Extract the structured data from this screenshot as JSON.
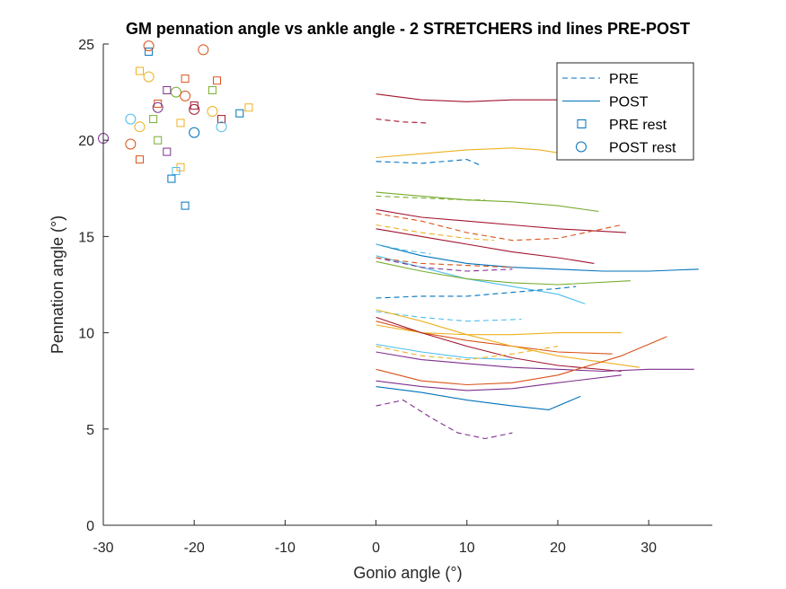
{
  "chart_data": {
    "type": "line",
    "title": "GM pennation angle vs ankle angle - 2 STRETCHERS ind lines PRE-POST",
    "xlabel": "Gonio angle (°)",
    "ylabel": "Pennation angle (°)",
    "xlim": [
      -30,
      37
    ],
    "ylim": [
      0,
      25
    ],
    "xticks": [
      -30,
      -20,
      -10,
      0,
      10,
      20,
      30
    ],
    "xtick_labels": [
      "-30",
      "-20",
      "-10",
      "0",
      "10",
      "20",
      "30"
    ],
    "yticks": [
      0,
      5,
      10,
      15,
      20,
      25
    ],
    "ytick_labels": [
      "0",
      "5",
      "10",
      "15",
      "20",
      "25"
    ],
    "grid": false,
    "legend_position": "top-right",
    "legend": [
      {
        "label": "PRE",
        "style": "dashed-line",
        "color": "#0072BD"
      },
      {
        "label": "POST",
        "style": "solid-line",
        "color": "#0072BD"
      },
      {
        "label": "PRE rest",
        "style": "square",
        "color": "#0072BD"
      },
      {
        "label": "POST rest",
        "style": "circle",
        "color": "#0072BD"
      }
    ],
    "series": [
      {
        "style": "solid",
        "color": "#A2142F",
        "x": [
          0,
          5,
          10,
          15,
          20,
          27
        ],
        "y": [
          22.4,
          22.1,
          22.0,
          22.1,
          22.1,
          22.2
        ]
      },
      {
        "style": "dashed",
        "color": "#A2142F",
        "x": [
          0,
          3,
          5.5
        ],
        "y": [
          21.1,
          20.95,
          20.9
        ]
      },
      {
        "style": "solid",
        "color": "#EDB120",
        "x": [
          0,
          5,
          10,
          15,
          18,
          22
        ],
        "y": [
          19.1,
          19.3,
          19.5,
          19.6,
          19.5,
          19.2
        ]
      },
      {
        "style": "dashed",
        "color": "#0072BD",
        "x": [
          0,
          5,
          10,
          11.5
        ],
        "y": [
          18.9,
          18.8,
          19.0,
          18.7
        ]
      },
      {
        "style": "solid",
        "color": "#77AC30",
        "x": [
          0,
          5,
          10,
          15,
          20,
          24.5
        ],
        "y": [
          17.3,
          17.1,
          16.9,
          16.8,
          16.6,
          16.3
        ]
      },
      {
        "style": "dashed",
        "color": "#77AC30",
        "x": [
          0,
          5,
          10,
          12
        ],
        "y": [
          17.1,
          17.0,
          16.9,
          16.9
        ]
      },
      {
        "style": "solid",
        "color": "#A2142F",
        "x": [
          0,
          5,
          10,
          15,
          20,
          27.5
        ],
        "y": [
          16.4,
          16.0,
          15.8,
          15.6,
          15.4,
          15.2
        ]
      },
      {
        "style": "dashed",
        "color": "#D95319",
        "x": [
          0,
          5,
          10,
          15,
          20,
          27
        ],
        "y": [
          16.2,
          15.8,
          15.2,
          14.8,
          14.9,
          15.6
        ]
      },
      {
        "style": "solid",
        "color": "#A2142F",
        "x": [
          0,
          5,
          10,
          15,
          20,
          24
        ],
        "y": [
          15.4,
          15.0,
          14.6,
          14.2,
          13.9,
          13.6
        ]
      },
      {
        "style": "dashed",
        "color": "#EDB120",
        "x": [
          0,
          5,
          10,
          13
        ],
        "y": [
          15.6,
          15.2,
          14.9,
          14.8
        ]
      },
      {
        "style": "solid",
        "color": "#0072BD",
        "x": [
          0,
          5,
          10,
          15,
          20,
          25,
          30,
          35.5
        ],
        "y": [
          14.6,
          14.0,
          13.6,
          13.4,
          13.3,
          13.2,
          13.2,
          13.3
        ]
      },
      {
        "style": "dashed",
        "color": "#4DBEEE",
        "x": [
          0,
          3,
          6
        ],
        "y": [
          14.6,
          14.3,
          14.1
        ]
      },
      {
        "style": "solid",
        "color": "#4DBEEE",
        "x": [
          0,
          5,
          10,
          15,
          20,
          23
        ],
        "y": [
          14.0,
          13.4,
          12.8,
          12.4,
          12.0,
          11.5
        ]
      },
      {
        "style": "dashed",
        "color": "#7E2F8E",
        "x": [
          0,
          5,
          10,
          15
        ],
        "y": [
          13.9,
          13.4,
          13.2,
          13.3
        ]
      },
      {
        "style": "solid",
        "color": "#77AC30",
        "x": [
          0,
          5,
          10,
          15,
          20,
          28
        ],
        "y": [
          13.7,
          13.2,
          12.8,
          12.6,
          12.5,
          12.7
        ]
      },
      {
        "style": "dashed",
        "color": "#D95319",
        "x": [
          0,
          5,
          10,
          15
        ],
        "y": [
          13.9,
          13.6,
          13.5,
          13.4
        ]
      },
      {
        "style": "dashed",
        "color": "#0072BD",
        "x": [
          0,
          5,
          10,
          15,
          20,
          22
        ],
        "y": [
          11.8,
          11.9,
          11.9,
          12.1,
          12.3,
          12.4
        ]
      },
      {
        "style": "dashed",
        "color": "#4DBEEE",
        "x": [
          0,
          5,
          10,
          16
        ],
        "y": [
          11.1,
          10.8,
          10.6,
          10.7
        ]
      },
      {
        "style": "solid",
        "color": "#D95319",
        "x": [
          0,
          5,
          10,
          15,
          20,
          26
        ],
        "y": [
          10.6,
          10.0,
          9.6,
          9.3,
          9.0,
          8.9
        ]
      },
      {
        "style": "solid",
        "color": "#EDB120",
        "x": [
          0,
          5,
          10,
          15,
          20,
          27
        ],
        "y": [
          10.4,
          10.0,
          9.9,
          9.9,
          10.0,
          10.0
        ]
      },
      {
        "style": "solid",
        "color": "#A2142F",
        "x": [
          0,
          5,
          10,
          15,
          20,
          27
        ],
        "y": [
          10.8,
          10.0,
          9.3,
          8.7,
          8.3,
          8.0
        ]
      },
      {
        "style": "solid",
        "color": "#EDB120",
        "x": [
          0,
          5,
          10,
          15,
          20,
          29
        ],
        "y": [
          11.2,
          10.6,
          9.9,
          9.3,
          8.8,
          8.2
        ]
      },
      {
        "style": "solid",
        "color": "#4DBEEE",
        "x": [
          0,
          5,
          10,
          15
        ],
        "y": [
          9.4,
          9.0,
          8.7,
          8.6
        ]
      },
      {
        "style": "dashed",
        "color": "#EDB120",
        "x": [
          0,
          5,
          10,
          15,
          20
        ],
        "y": [
          9.3,
          8.8,
          8.6,
          8.9,
          9.3
        ]
      },
      {
        "style": "solid",
        "color": "#7E2F8E",
        "x": [
          0,
          5,
          10,
          15,
          20,
          25,
          30,
          35
        ],
        "y": [
          9.0,
          8.6,
          8.4,
          8.2,
          8.1,
          8.0,
          8.1,
          8.1
        ]
      },
      {
        "style": "solid",
        "color": "#D95319",
        "x": [
          0,
          5,
          10,
          15,
          20,
          27,
          32
        ],
        "y": [
          8.1,
          7.5,
          7.3,
          7.4,
          7.8,
          8.8,
          9.8
        ]
      },
      {
        "style": "solid",
        "color": "#0072BD",
        "x": [
          0,
          5,
          10,
          15,
          19,
          22.5
        ],
        "y": [
          7.2,
          6.9,
          6.5,
          6.2,
          6.0,
          6.7
        ]
      },
      {
        "style": "solid",
        "color": "#7E2F8E",
        "x": [
          0,
          5,
          10,
          15,
          20,
          27
        ],
        "y": [
          7.5,
          7.2,
          7.0,
          7.1,
          7.4,
          7.8
        ]
      },
      {
        "style": "dashed",
        "color": "#7E2F8E",
        "x": [
          0,
          3,
          6,
          9,
          12,
          15
        ],
        "y": [
          6.2,
          6.5,
          5.6,
          4.8,
          4.5,
          4.8
        ]
      }
    ],
    "rest_points": [
      {
        "marker": "square",
        "color": "#0072BD",
        "x": -25,
        "y": 24.6
      },
      {
        "marker": "square",
        "color": "#EDB120",
        "x": -26,
        "y": 23.6
      },
      {
        "marker": "square",
        "color": "#D95319",
        "x": -21,
        "y": 23.2
      },
      {
        "marker": "square",
        "color": "#D95319",
        "x": -17.5,
        "y": 23.1
      },
      {
        "marker": "square",
        "color": "#7E2F8E",
        "x": -23,
        "y": 22.6
      },
      {
        "marker": "square",
        "color": "#77AC30",
        "x": -18,
        "y": 22.6
      },
      {
        "marker": "square",
        "color": "#D95319",
        "x": -24,
        "y": 21.9
      },
      {
        "marker": "square",
        "color": "#A2142F",
        "x": -20,
        "y": 21.8
      },
      {
        "marker": "square",
        "color": "#EDB120",
        "x": -14,
        "y": 21.7
      },
      {
        "marker": "square",
        "color": "#0072BD",
        "x": -15,
        "y": 21.4
      },
      {
        "marker": "square",
        "color": "#A2142F",
        "x": -17,
        "y": 21.1
      },
      {
        "marker": "square",
        "color": "#77AC30",
        "x": -24.5,
        "y": 21.1
      },
      {
        "marker": "square",
        "color": "#EDB120",
        "x": -21.5,
        "y": 20.9
      },
      {
        "marker": "square",
        "color": "#77AC30",
        "x": -24,
        "y": 20.0
      },
      {
        "marker": "square",
        "color": "#7E2F8E",
        "x": -23,
        "y": 19.4
      },
      {
        "marker": "square",
        "color": "#D95319",
        "x": -26,
        "y": 19.0
      },
      {
        "marker": "square",
        "color": "#EDB120",
        "x": -21.5,
        "y": 18.6
      },
      {
        "marker": "square",
        "color": "#4DBEEE",
        "x": -22,
        "y": 18.4
      },
      {
        "marker": "square",
        "color": "#0072BD",
        "x": -22.5,
        "y": 18.0
      },
      {
        "marker": "square",
        "color": "#0072BD",
        "x": -21,
        "y": 16.6
      },
      {
        "marker": "circle",
        "color": "#D95319",
        "x": -25,
        "y": 24.9
      },
      {
        "marker": "circle",
        "color": "#D95319",
        "x": -19,
        "y": 24.7
      },
      {
        "marker": "circle",
        "color": "#EDB120",
        "x": -25,
        "y": 23.3
      },
      {
        "marker": "circle",
        "color": "#77AC30",
        "x": -22,
        "y": 22.5
      },
      {
        "marker": "circle",
        "color": "#D95319",
        "x": -21,
        "y": 22.3
      },
      {
        "marker": "circle",
        "color": "#7E2F8E",
        "x": -24,
        "y": 21.7
      },
      {
        "marker": "circle",
        "color": "#A2142F",
        "x": -20,
        "y": 21.6
      },
      {
        "marker": "circle",
        "color": "#EDB120",
        "x": -18,
        "y": 21.5
      },
      {
        "marker": "circle",
        "color": "#4DBEEE",
        "x": -27,
        "y": 21.1
      },
      {
        "marker": "circle",
        "color": "#EDB120",
        "x": -26,
        "y": 20.7
      },
      {
        "marker": "circle",
        "color": "#4DBEEE",
        "x": -17,
        "y": 20.7
      },
      {
        "marker": "circle",
        "color": "#0072BD",
        "x": -20,
        "y": 20.4
      },
      {
        "marker": "circle",
        "color": "#7E2F8E",
        "x": -30,
        "y": 20.1
      },
      {
        "marker": "circle",
        "color": "#D95319",
        "x": -27,
        "y": 19.8
      }
    ]
  }
}
